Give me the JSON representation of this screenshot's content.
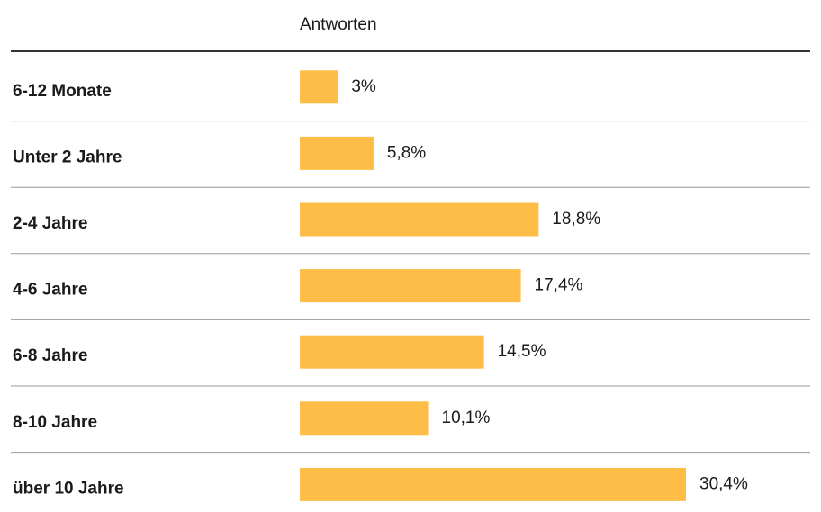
{
  "chart_data": {
    "type": "bar",
    "orientation": "horizontal",
    "column_header": "Antworten",
    "categories": [
      "6-12 Monate",
      "Unter 2 Jahre",
      "2-4 Jahre",
      "4-6 Jahre",
      "6-8 Jahre",
      "8-10 Jahre",
      "über 10 Jahre"
    ],
    "values": [
      3,
      5.8,
      18.8,
      17.4,
      14.5,
      10.1,
      30.4
    ],
    "value_labels": [
      "3%",
      "5,8%",
      "18,8%",
      "17,4%",
      "14,5%",
      "10,1%",
      "30,4%"
    ],
    "color": "#fdbd46"
  }
}
